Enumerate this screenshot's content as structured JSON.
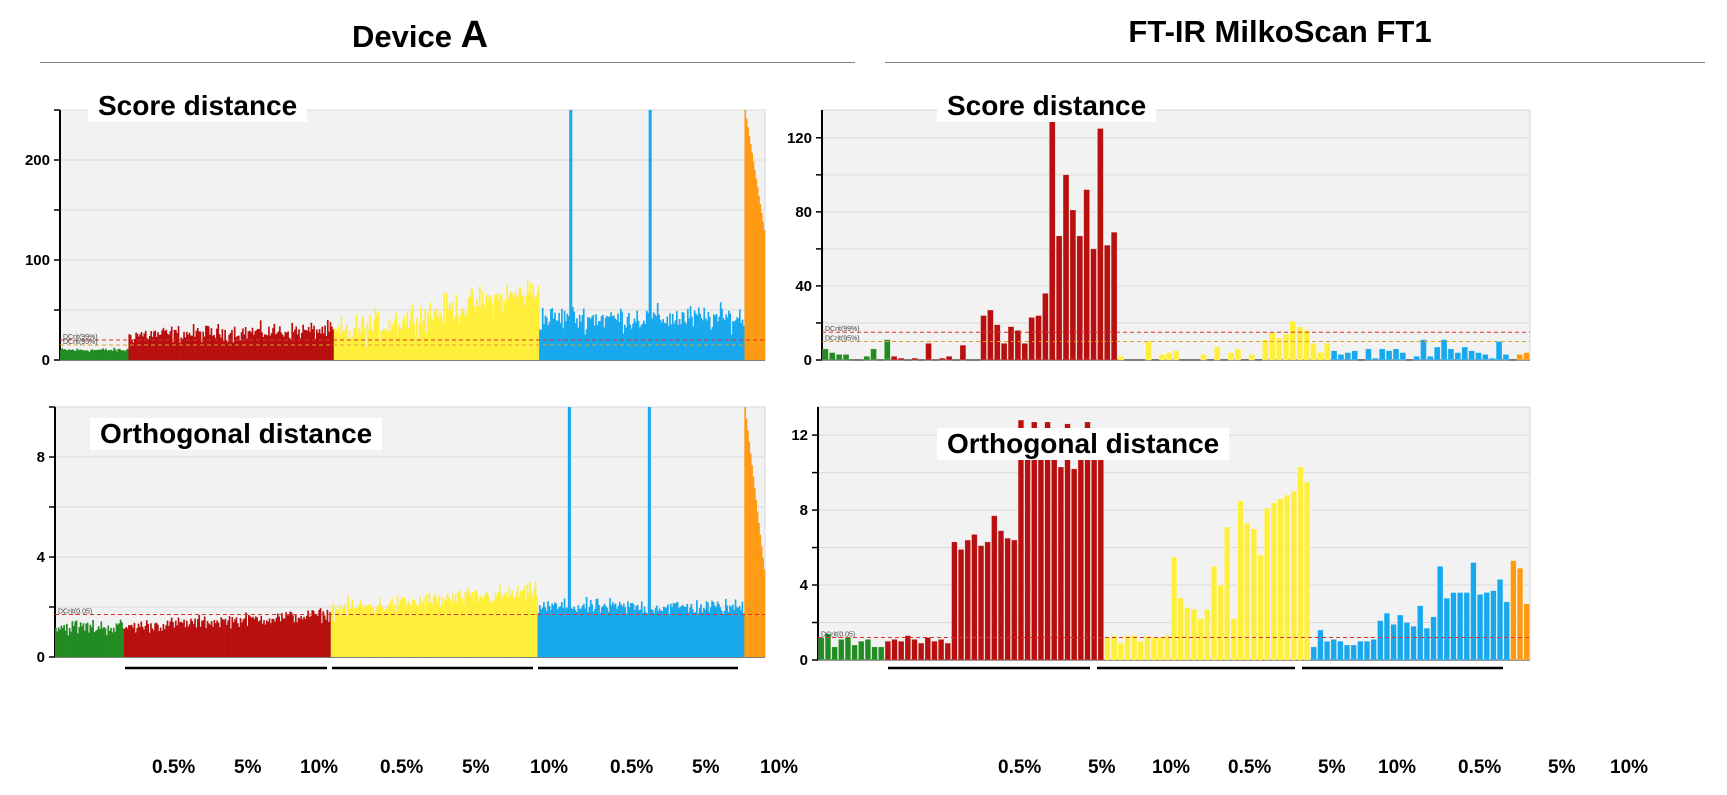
{
  "left": {
    "title_main": "Device ",
    "title_letter": "A"
  },
  "right": {
    "title": "FT-IR MilkoScan FT1"
  },
  "x_groups": {
    "dose_labels": [
      "0.5%",
      "5%",
      "10%"
    ]
  },
  "colors": {
    "green": "#228B22",
    "red": "#B80F0F",
    "yellow": "#FFEE3A",
    "blue": "#18A8EE",
    "orange": "#FF9A14",
    "plot_bg": "#F2F2F2",
    "gridline": "#DADADA",
    "crit_line_red": "#E03030",
    "crit_line_orange": "#E0A030"
  },
  "chart_data": [
    {
      "panel": "device-a-score",
      "type": "bar",
      "title": "Score distance",
      "yticks": [
        0,
        100,
        200
      ],
      "ylim": [
        0,
        250
      ],
      "grid": true,
      "series": [
        {
          "color": "green",
          "count": 50,
          "mean": 10,
          "sd": 2
        },
        {
          "color": "red",
          "count": 150,
          "mean": 30,
          "sd": 8,
          "trend": [
            25,
            30
          ]
        },
        {
          "color": "yellow",
          "count": 150,
          "mean": 45,
          "sd": 15,
          "trend": [
            25,
            70
          ]
        },
        {
          "color": "blue",
          "count": 150,
          "mean": 42,
          "sd": 12,
          "spikes": [
            {
              "at": 22,
              "value": 250
            },
            {
              "at": 80,
              "value": 250
            }
          ]
        },
        {
          "color": "orange",
          "count": 15,
          "mean": 250,
          "sd": 0,
          "trend": [
            250,
            130
          ]
        }
      ],
      "crit_label_1": "DCrit(99%)",
      "crit_label_2": "DCrit(95%)",
      "crit_values": [
        20,
        15
      ]
    },
    {
      "panel": "device-a-orthogonal",
      "type": "bar",
      "title": "Orthogonal distance",
      "yticks": [
        0,
        4,
        8
      ],
      "ylim": [
        0,
        10
      ],
      "grid": true,
      "series": [
        {
          "color": "green",
          "count": 50,
          "mean": 1.2,
          "sd": 0.3
        },
        {
          "color": "red",
          "count": 150,
          "mean": 1.5,
          "sd": 0.25,
          "trend": [
            1.2,
            1.7
          ]
        },
        {
          "color": "yellow",
          "count": 150,
          "mean": 2.3,
          "sd": 0.35,
          "trend": [
            1.9,
            2.6
          ]
        },
        {
          "color": "blue",
          "count": 150,
          "mean": 2.0,
          "sd": 0.3,
          "spikes": [
            {
              "at": 22,
              "value": 10
            },
            {
              "at": 80,
              "value": 10
            }
          ]
        },
        {
          "color": "orange",
          "count": 15,
          "mean": 10,
          "sd": 0,
          "trend": [
            10,
            3.5
          ]
        }
      ],
      "crit_label_1": "DCrit(0.05)",
      "crit_values": [
        1.7
      ]
    },
    {
      "panel": "milkoscan-score",
      "type": "bar",
      "title": "Score distance",
      "yticks": [
        0,
        40,
        80,
        120
      ],
      "ylim": [
        0,
        135
      ],
      "grid": true,
      "series": [
        {
          "color": "green",
          "values": [
            6,
            4,
            3,
            3,
            0,
            0,
            2,
            6,
            0,
            11
          ]
        },
        {
          "color": "red",
          "values": [
            2,
            1,
            0,
            1,
            0,
            9,
            0,
            1,
            2,
            0,
            8,
            0,
            0,
            24,
            27,
            19,
            9,
            18,
            16,
            9,
            23,
            24,
            36,
            132,
            67,
            100,
            81,
            67,
            92,
            60,
            125,
            62,
            69
          ]
        },
        {
          "color": "yellow",
          "values": [
            2,
            0,
            0,
            0,
            10,
            0,
            3,
            4,
            5,
            0,
            0,
            0,
            3,
            0,
            7,
            0,
            4,
            6,
            0,
            3,
            0,
            11,
            15,
            12,
            14,
            21,
            18,
            16,
            9,
            4,
            9
          ]
        },
        {
          "color": "blue",
          "values": [
            5,
            3,
            4,
            5,
            0,
            6,
            1,
            6,
            5,
            6,
            4,
            0,
            2,
            11,
            2,
            7,
            11,
            6,
            4,
            7,
            5,
            4,
            3,
            1,
            10,
            3,
            0
          ]
        },
        {
          "color": "orange",
          "values": [
            3,
            4
          ]
        }
      ],
      "crit_label_1": "DCrit(99%)",
      "crit_label_2": "DCrit(95%)",
      "crit_values": [
        15,
        10
      ]
    },
    {
      "panel": "milkoscan-orthogonal",
      "type": "bar",
      "title": "Orthogonal distance",
      "yticks": [
        0,
        4,
        8,
        12
      ],
      "ylim": [
        0,
        13.5
      ],
      "grid": true,
      "series": [
        {
          "color": "green",
          "values": [
            1.2,
            1.4,
            0.7,
            1.1,
            1.2,
            0.8,
            1.0,
            1.1,
            0.7,
            0.7
          ]
        },
        {
          "color": "red",
          "values": [
            1.0,
            1.1,
            1.0,
            1.3,
            1.1,
            0.9,
            1.2,
            1.0,
            1.1,
            0.9,
            6.3,
            5.9,
            6.4,
            6.7,
            6.1,
            6.3,
            7.7,
            6.9,
            6.5,
            6.4,
            12.8,
            11.5,
            12.7,
            11.2,
            12.7,
            12.0,
            10.3,
            12.6,
            10.2,
            11.1,
            12.7,
            11.0,
            11.3
          ]
        },
        {
          "color": "yellow",
          "values": [
            1.2,
            1.3,
            0.9,
            1.3,
            1.3,
            1.0,
            1.3,
            1.2,
            1.2,
            1.3,
            5.5,
            3.3,
            2.8,
            2.7,
            2.2,
            2.7,
            5.0,
            4.0,
            7.1,
            2.2,
            8.5,
            7.3,
            7.0,
            5.6,
            8.1,
            8.4,
            8.6,
            8.8,
            9.0,
            10.3,
            9.5
          ]
        },
        {
          "color": "blue",
          "values": [
            0.7,
            1.6,
            1.0,
            1.1,
            1.0,
            0.8,
            0.8,
            1.0,
            1.0,
            1.1,
            2.1,
            2.5,
            1.9,
            2.4,
            2.0,
            1.8,
            2.9,
            1.7,
            2.3,
            5.0,
            3.3,
            3.6,
            3.6,
            3.6,
            5.2,
            3.5,
            3.6,
            3.7,
            4.3,
            3.1
          ]
        },
        {
          "color": "orange",
          "values": [
            5.3,
            4.9,
            3.0
          ]
        }
      ],
      "crit_label_1": "DCrit(0.05)",
      "crit_values": [
        1.2
      ]
    }
  ]
}
